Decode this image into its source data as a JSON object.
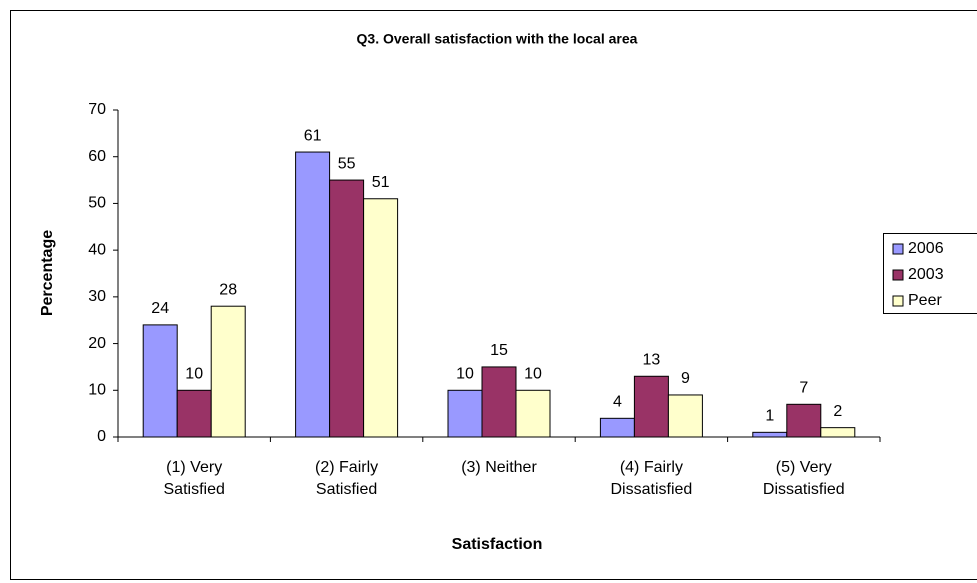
{
  "chart_data": {
    "type": "bar",
    "title": "Q3. Overall satisfaction with the local area",
    "x_label": "Satisfaction",
    "y_label": "Percentage",
    "categories": [
      "(1) Very Satisfied",
      "(2) Fairly Satisfied",
      "(3) Neither",
      "(4) Fairly Dissatisfied",
      "(5) Very Dissatisfied"
    ],
    "series": [
      {
        "name": "2006",
        "color": "#9999ff",
        "values": [
          24,
          61,
          10,
          4,
          1
        ]
      },
      {
        "name": "2003",
        "color": "#993366",
        "values": [
          10,
          55,
          15,
          13,
          7
        ]
      },
      {
        "name": "Peer",
        "color": "#ffffcc",
        "values": [
          28,
          51,
          10,
          9,
          2
        ]
      }
    ],
    "ylim": [
      0,
      70
    ],
    "yticks": [
      0,
      10,
      20,
      30,
      40,
      50,
      60,
      70
    ],
    "grid": false,
    "legend": "right"
  }
}
